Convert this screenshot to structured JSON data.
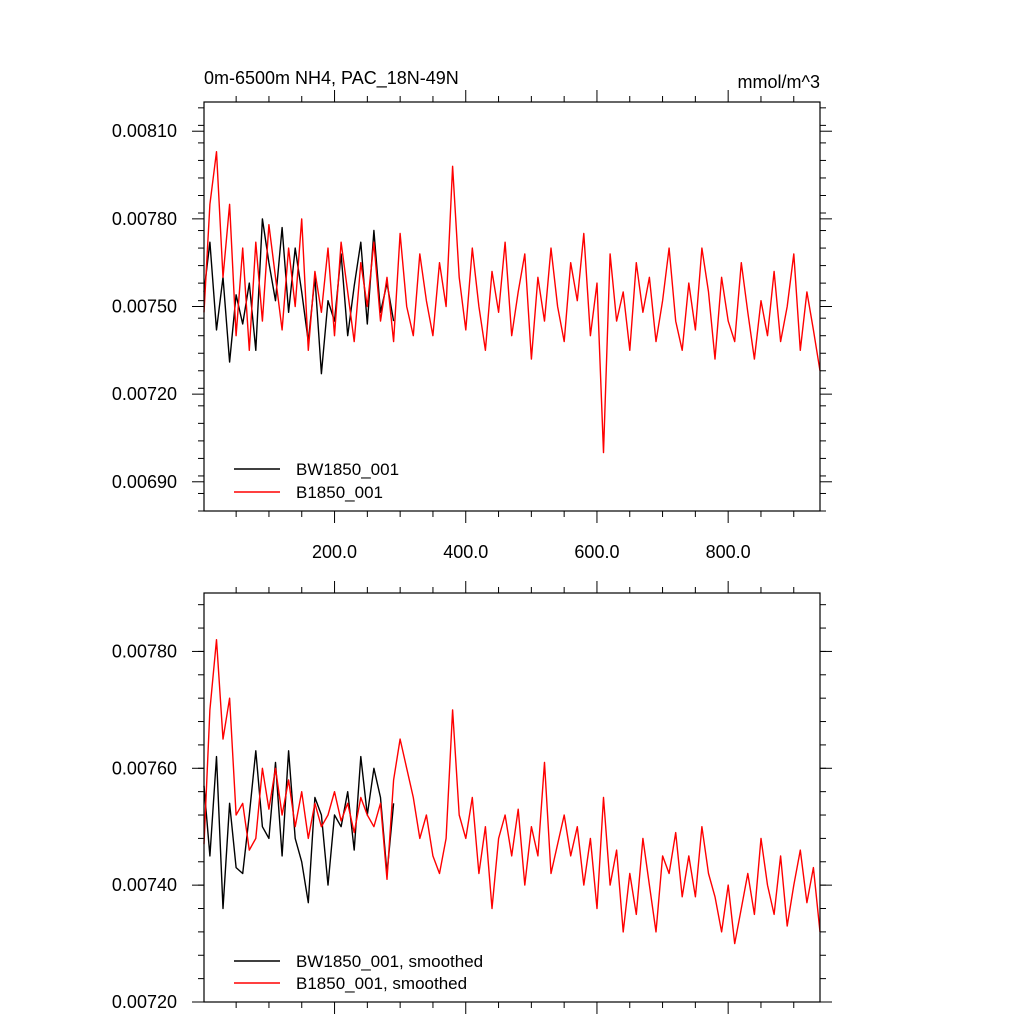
{
  "chart_data": [
    {
      "type": "line",
      "title": "0m-6500m NH4, PAC_18N-49N",
      "units": "mmol/m^3",
      "xlim": [
        1,
        940
      ],
      "ylim": [
        0.0068,
        0.0082
      ],
      "xticks": [
        200,
        400,
        600,
        800
      ],
      "xtick_labels": [
        "200.0",
        "400.0",
        "600.0",
        "800.0"
      ],
      "yticks": [
        0.0069,
        0.0072,
        0.0075,
        0.0078,
        0.0081
      ],
      "ytick_labels": [
        "0.00690",
        "0.00720",
        "0.00750",
        "0.00780",
        "0.00810"
      ],
      "legend_position": "bottom-left",
      "series": [
        {
          "name": "BW1850_001",
          "color": "#000000",
          "x": [
            1,
            10,
            20,
            30,
            40,
            50,
            60,
            70,
            80,
            90,
            100,
            110,
            120,
            130,
            140,
            150,
            160,
            170,
            180,
            190,
            200,
            210,
            220,
            230,
            240,
            250,
            260,
            270,
            280,
            290
          ],
          "values": [
            0.00755,
            0.00772,
            0.00742,
            0.0076,
            0.00731,
            0.00754,
            0.00744,
            0.00758,
            0.00735,
            0.0078,
            0.00765,
            0.00752,
            0.00777,
            0.00748,
            0.0077,
            0.00755,
            0.00738,
            0.0076,
            0.00727,
            0.00752,
            0.00745,
            0.00768,
            0.0074,
            0.00757,
            0.00772,
            0.00744,
            0.00776,
            0.00748,
            0.00758,
            0.00745
          ]
        },
        {
          "name": "B1850_001",
          "color": "#ff0000",
          "x": [
            1,
            10,
            20,
            30,
            40,
            50,
            60,
            70,
            80,
            90,
            100,
            110,
            120,
            130,
            140,
            150,
            160,
            170,
            180,
            190,
            200,
            210,
            220,
            230,
            240,
            250,
            260,
            270,
            280,
            290,
            300,
            310,
            320,
            330,
            340,
            350,
            360,
            370,
            380,
            390,
            400,
            410,
            420,
            430,
            440,
            450,
            460,
            470,
            480,
            490,
            500,
            510,
            520,
            530,
            540,
            550,
            560,
            570,
            580,
            590,
            600,
            610,
            620,
            630,
            640,
            650,
            660,
            670,
            680,
            690,
            700,
            710,
            720,
            730,
            740,
            750,
            760,
            770,
            780,
            790,
            800,
            810,
            820,
            830,
            840,
            850,
            860,
            870,
            880,
            890,
            900,
            910,
            920,
            930,
            940
          ],
          "values": [
            0.00748,
            0.00785,
            0.00803,
            0.0076,
            0.00785,
            0.0074,
            0.0077,
            0.00735,
            0.00772,
            0.00745,
            0.00778,
            0.0076,
            0.00742,
            0.0077,
            0.0075,
            0.0078,
            0.00735,
            0.00762,
            0.00748,
            0.0077,
            0.0074,
            0.00772,
            0.00755,
            0.00738,
            0.00765,
            0.0075,
            0.00772,
            0.00745,
            0.0076,
            0.00738,
            0.00775,
            0.0075,
            0.0074,
            0.00768,
            0.00752,
            0.0074,
            0.00765,
            0.0075,
            0.00798,
            0.0076,
            0.00742,
            0.0077,
            0.0075,
            0.00735,
            0.00762,
            0.00748,
            0.00772,
            0.0074,
            0.00755,
            0.00768,
            0.00732,
            0.0076,
            0.00745,
            0.0077,
            0.0075,
            0.00738,
            0.00765,
            0.00752,
            0.00775,
            0.0074,
            0.00758,
            0.007,
            0.00768,
            0.00745,
            0.00755,
            0.00735,
            0.00765,
            0.00748,
            0.0076,
            0.00738,
            0.00752,
            0.0077,
            0.00745,
            0.00735,
            0.00758,
            0.00742,
            0.0077,
            0.00755,
            0.00732,
            0.0076,
            0.00745,
            0.00738,
            0.00765,
            0.00748,
            0.00732,
            0.00752,
            0.0074,
            0.00762,
            0.00738,
            0.0075,
            0.00768,
            0.00735,
            0.00755,
            0.00742,
            0.00728
          ]
        }
      ]
    },
    {
      "type": "line",
      "xlim": [
        1,
        940
      ],
      "ylim": [
        0.0072,
        0.0079
      ],
      "yticks": [
        0.0072,
        0.0074,
        0.0076,
        0.0078
      ],
      "ytick_labels": [
        "0.00720",
        "0.00740",
        "0.00760",
        "0.00780"
      ],
      "legend_position": "bottom-left",
      "series": [
        {
          "name": "BW1850_001, smoothed",
          "color": "#000000",
          "x": [
            1,
            10,
            20,
            30,
            40,
            50,
            60,
            70,
            80,
            90,
            100,
            110,
            120,
            130,
            140,
            150,
            160,
            170,
            180,
            190,
            200,
            210,
            220,
            230,
            240,
            250,
            260,
            270,
            280,
            290
          ],
          "values": [
            0.00757,
            0.00745,
            0.00762,
            0.00736,
            0.00754,
            0.00743,
            0.00742,
            0.00752,
            0.00763,
            0.0075,
            0.00748,
            0.00761,
            0.00745,
            0.00763,
            0.00748,
            0.00744,
            0.00737,
            0.00755,
            0.00752,
            0.0074,
            0.00752,
            0.0075,
            0.00756,
            0.00746,
            0.00762,
            0.00752,
            0.0076,
            0.00755,
            0.00742,
            0.00754
          ]
        },
        {
          "name": "B1850_001, smoothed",
          "color": "#ff0000",
          "x": [
            1,
            10,
            20,
            30,
            40,
            50,
            60,
            70,
            80,
            90,
            100,
            110,
            120,
            130,
            140,
            150,
            160,
            170,
            180,
            190,
            200,
            210,
            220,
            230,
            240,
            250,
            260,
            270,
            280,
            290,
            300,
            310,
            320,
            330,
            340,
            350,
            360,
            370,
            380,
            390,
            400,
            410,
            420,
            430,
            440,
            450,
            460,
            470,
            480,
            490,
            500,
            510,
            520,
            530,
            540,
            550,
            560,
            570,
            580,
            590,
            600,
            610,
            620,
            630,
            640,
            650,
            660,
            670,
            680,
            690,
            700,
            710,
            720,
            730,
            740,
            750,
            760,
            770,
            780,
            790,
            800,
            810,
            820,
            830,
            840,
            850,
            860,
            870,
            880,
            890,
            900,
            910,
            920,
            930,
            940
          ],
          "values": [
            0.00747,
            0.0077,
            0.00782,
            0.00765,
            0.00772,
            0.00752,
            0.00754,
            0.00746,
            0.00748,
            0.0076,
            0.00753,
            0.0076,
            0.00752,
            0.00758,
            0.0075,
            0.00756,
            0.00748,
            0.00754,
            0.0075,
            0.00752,
            0.00756,
            0.00751,
            0.00754,
            0.00749,
            0.00755,
            0.00752,
            0.0075,
            0.00754,
            0.00741,
            0.00758,
            0.00765,
            0.0076,
            0.00755,
            0.00748,
            0.00752,
            0.00745,
            0.00742,
            0.00748,
            0.0077,
            0.00752,
            0.00748,
            0.00755,
            0.00742,
            0.0075,
            0.00736,
            0.00748,
            0.00752,
            0.00745,
            0.00753,
            0.0074,
            0.0075,
            0.00745,
            0.00761,
            0.00742,
            0.00747,
            0.00752,
            0.00745,
            0.0075,
            0.0074,
            0.00748,
            0.00736,
            0.00755,
            0.0074,
            0.00746,
            0.00732,
            0.00742,
            0.00735,
            0.00748,
            0.0074,
            0.00732,
            0.00745,
            0.00742,
            0.00749,
            0.00738,
            0.00745,
            0.00738,
            0.0075,
            0.00742,
            0.00738,
            0.00732,
            0.0074,
            0.0073,
            0.00736,
            0.00742,
            0.00735,
            0.00748,
            0.0074,
            0.00735,
            0.00745,
            0.00733,
            0.0074,
            0.00746,
            0.00737,
            0.00743,
            0.00732
          ]
        }
      ]
    }
  ]
}
